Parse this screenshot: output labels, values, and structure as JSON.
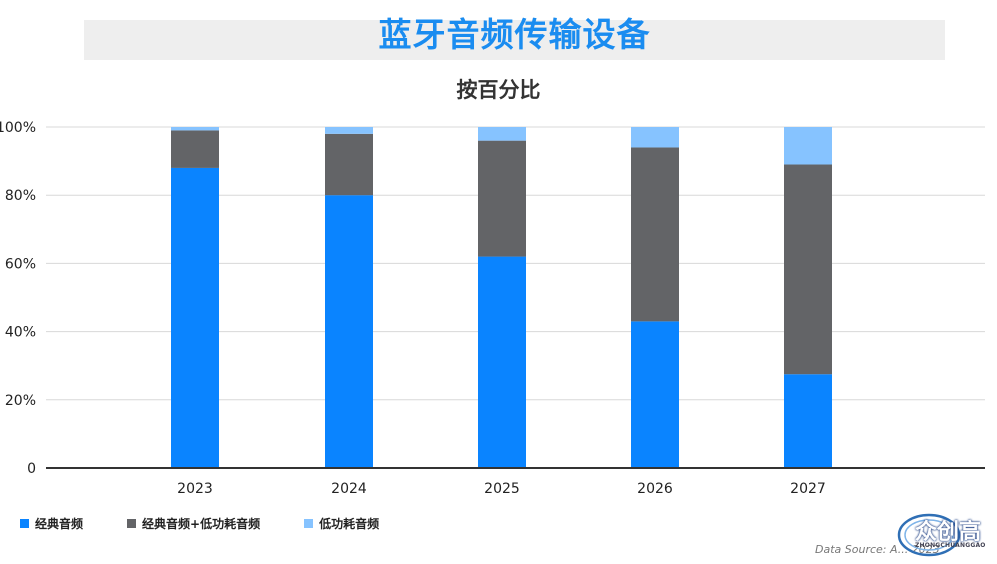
{
  "title": "蓝牙音频传输设备",
  "subtitle": "按百分比",
  "source": "Data Source: A... 2023",
  "logo": {
    "text": "众创高",
    "sub": "ZHONGCHUANGGAO"
  },
  "colors": {
    "classic": "#0a84ff",
    "dual": "#636467",
    "le": "#86c3ff",
    "axis": "#333333",
    "grid": "#d8d8d8"
  },
  "chart_data": {
    "type": "bar",
    "stacked": true,
    "categories": [
      "2023",
      "2024",
      "2025",
      "2026",
      "2027"
    ],
    "series": [
      {
        "name": "经典音频",
        "values": [
          88,
          80,
          62,
          43,
          27.5
        ]
      },
      {
        "name": "经典音频+低功耗音频",
        "values": [
          11,
          18,
          34,
          51,
          61.5
        ]
      },
      {
        "name": "低功耗音频",
        "values": [
          1,
          2,
          4,
          6,
          11
        ]
      }
    ],
    "ylim": [
      0,
      100
    ],
    "yticks": [
      "0",
      "20%",
      "40%",
      "60%",
      "80%",
      "100%"
    ],
    "ytick_values": [
      0,
      20,
      40,
      60,
      80,
      100
    ],
    "grid": true,
    "legend": "bottom-left"
  }
}
